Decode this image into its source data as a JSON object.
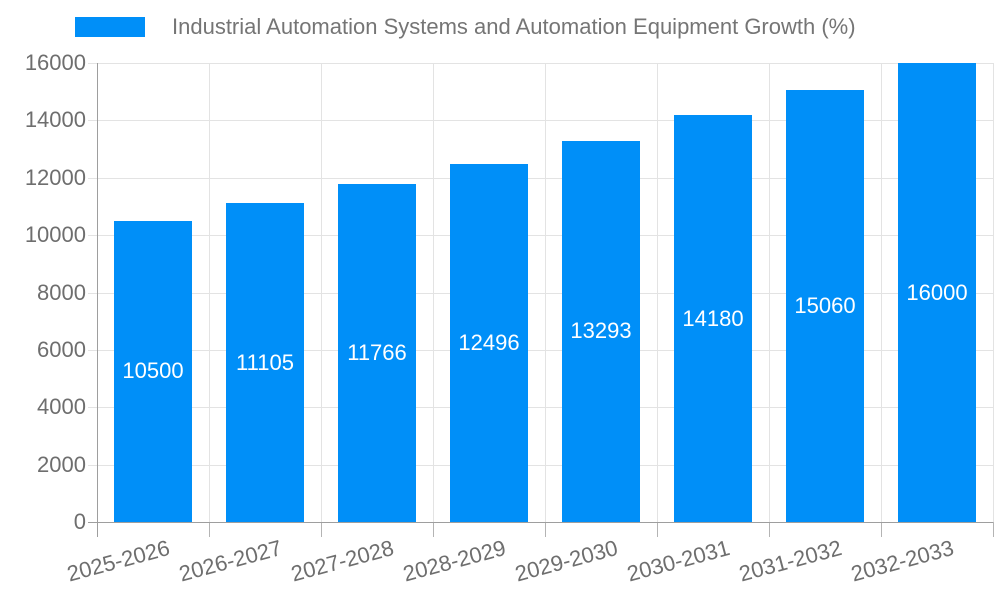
{
  "legend": {
    "label": "Industrial Automation Systems and Automation Equipment Growth (%)"
  },
  "chart_data": {
    "type": "bar",
    "title": "Industrial Automation Systems and Automation Equipment Growth (%)",
    "categories": [
      "2025-2026",
      "2026-2027",
      "2027-2028",
      "2028-2029",
      "2029-2030",
      "2030-2031",
      "2031-2032",
      "2032-2033"
    ],
    "values": [
      10500,
      11105,
      11766,
      12496,
      13293,
      14180,
      15060,
      16000
    ],
    "value_labels": [
      "10500",
      "11105",
      "11766",
      "12496",
      "13293",
      "14180",
      "15060",
      "16000"
    ],
    "xlabel": "",
    "ylabel": "",
    "ylim": [
      0,
      16000
    ],
    "yticks": [
      0,
      2000,
      4000,
      6000,
      8000,
      10000,
      12000,
      14000,
      16000
    ],
    "grid": true,
    "legend_position": "top",
    "colors": {
      "bar": "#008FF8",
      "grid": "#e3e3e3",
      "axis": "#9e9e9e",
      "tick": "#b4b4b4",
      "axis_text": "#6e6e6e",
      "title_text": "#757575",
      "value_label_text": "#ffffff"
    }
  }
}
